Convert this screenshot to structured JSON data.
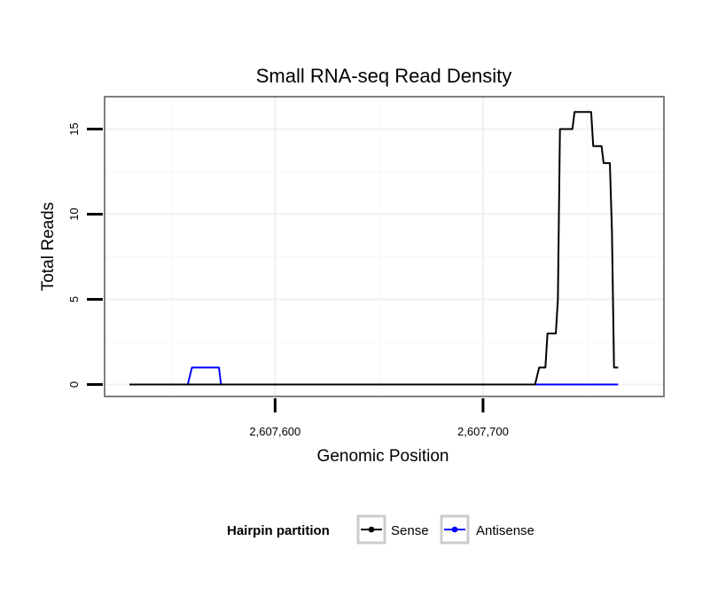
{
  "chart_data": {
    "type": "line",
    "title": "Small RNA-seq Read Density",
    "xlabel": "Genomic Position",
    "ylabel": "Total Reads",
    "xlim": [
      2607518,
      2607787
    ],
    "ylim": [
      -0.7,
      16.9
    ],
    "x_ticks": [
      {
        "value": 2607600,
        "label": "2,607,600"
      },
      {
        "value": 2607700,
        "label": "2,607,700"
      }
    ],
    "x_minor_grid": [
      2607550,
      2607650,
      2607750
    ],
    "y_ticks": [
      {
        "value": 0,
        "label": "0"
      },
      {
        "value": 5,
        "label": "5"
      },
      {
        "value": 10,
        "label": "10"
      },
      {
        "value": 15,
        "label": "15"
      }
    ],
    "y_minor_grid": [
      2.5,
      7.5,
      12.5
    ],
    "grid": true,
    "legend": {
      "title": "Hairpin partition",
      "position": "bottom"
    },
    "series": [
      {
        "name": "Sense",
        "color": "#000000",
        "x": [
          2607530,
          2607725,
          2607727,
          2607730,
          2607731,
          2607735,
          2607736,
          2607737,
          2607738,
          2607743,
          2607744,
          2607752,
          2607753,
          2607757,
          2607758,
          2607761,
          2607762,
          2607763,
          2607764,
          2607765
        ],
        "y": [
          0,
          0,
          1,
          1,
          3,
          3,
          5,
          15,
          15,
          15,
          16,
          16,
          14,
          14,
          13,
          13,
          9,
          1,
          1,
          1
        ]
      },
      {
        "name": "Antisense",
        "color": "#0000ff",
        "x": [
          2607530,
          2607558,
          2607560,
          2607573,
          2607574,
          2607765
        ],
        "y": [
          0,
          0,
          1,
          1,
          0,
          0
        ]
      }
    ]
  }
}
